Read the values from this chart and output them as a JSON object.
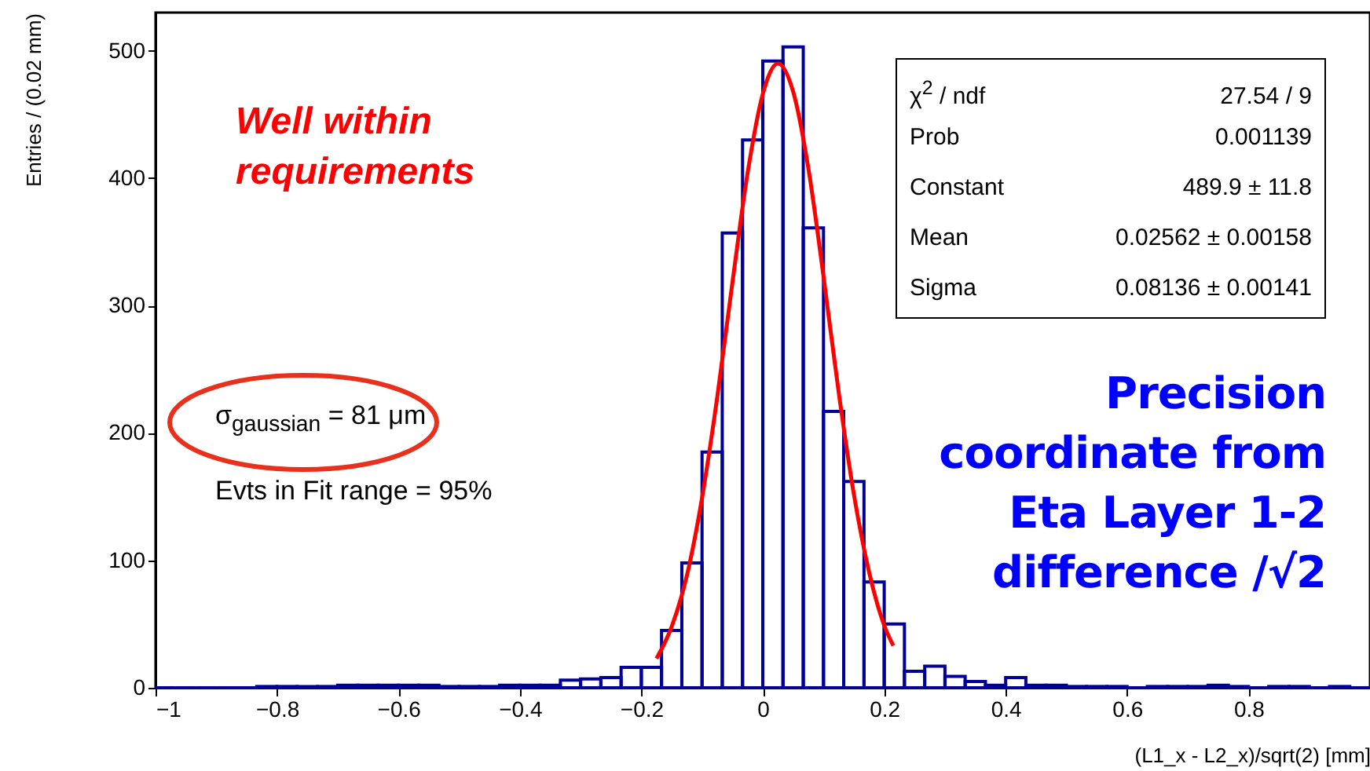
{
  "chart_data": {
    "type": "histogram",
    "xlabel": "(L1_x - L2_x)/sqrt(2) [mm]",
    "ylabel": "Entries / (0.02 mm)",
    "bins": [
      -1,
      -0.9667,
      -0.9333,
      -0.9,
      -0.8667,
      -0.8333,
      -0.8,
      -0.7667,
      -0.7333,
      -0.7,
      -0.6667,
      -0.6333,
      -0.6,
      -0.5667,
      -0.5333,
      -0.5,
      -0.4667,
      -0.4333,
      -0.4,
      -0.3667,
      -0.3333,
      -0.3,
      -0.2667,
      -0.2333,
      -0.2,
      -0.1667,
      -0.1333,
      -0.1,
      -0.0667,
      -0.0333,
      0,
      0.0333,
      0.0667,
      0.1,
      0.1333,
      0.1667,
      0.2,
      0.2333,
      0.2667,
      0.3,
      0.3333,
      0.3667,
      0.4,
      0.4333,
      0.4667,
      0.5,
      0.5333,
      0.5667,
      0.6,
      0.6333,
      0.6667,
      0.7,
      0.7333,
      0.7667,
      0.8,
      0.8333,
      0.8667,
      0.9,
      0.9333,
      0.9667,
      1
    ],
    "values": [
      0,
      0,
      0,
      0,
      0,
      1,
      1,
      1,
      1,
      2,
      2,
      2,
      2,
      2,
      1,
      1,
      1,
      2,
      2,
      2,
      6,
      7,
      8,
      16,
      16,
      45,
      98,
      185,
      357,
      430,
      492,
      503,
      361,
      217,
      162,
      83,
      50,
      13,
      17,
      9,
      5,
      2,
      8,
      2,
      2,
      1,
      1,
      1,
      0,
      1,
      1,
      1,
      2,
      1,
      0,
      1,
      1,
      0,
      1,
      0
    ],
    "color": "#000099",
    "series": [
      {
        "type": "line",
        "color": "#ff0000",
        "x": [
          -0.175,
          -0.15,
          -0.125,
          -0.1,
          -0.075,
          -0.05,
          -0.025,
          0,
          0.025,
          0.05,
          0.075,
          0.1,
          0.125,
          0.15,
          0.175,
          0.2,
          0.215
        ],
        "values": [
          23,
          48,
          88,
          149,
          228,
          318,
          404,
          466,
          490,
          468,
          408,
          323,
          232,
          152,
          91,
          49,
          33
        ]
      }
    ],
    "xlim": [
      -1,
      1
    ],
    "xticks": [
      {
        "value": -1,
        "label": "−1"
      },
      {
        "value": -0.8,
        "label": "−0.8"
      },
      {
        "value": -0.6,
        "label": "−0.6"
      },
      {
        "value": -0.4,
        "label": "−0.4"
      },
      {
        "value": -0.2,
        "label": "−0.2"
      },
      0,
      0.2,
      0.4,
      0.6,
      0.8
    ],
    "ylim": [
      0,
      530
    ],
    "yticks": [
      0,
      100,
      200,
      300,
      400,
      500
    ],
    "grid": false,
    "marker": "none",
    "annotations": [
      "Well within requirements",
      "σ$_{gaussian}$ = 81 μm",
      "Evts in Fit range = 95%",
      "Precision coordinate from Eta Layer 1-2 difference /√2",
      "χ$^{2}$ / ndf",
      "27.54 / 9",
      "Prob",
      "0.001139",
      "Constant",
      "489.9 ± 11.8",
      "Mean",
      "0.02562 ± 0.00158",
      "Sigma",
      "0.08136 ± 0.00141"
    ]
  }
}
